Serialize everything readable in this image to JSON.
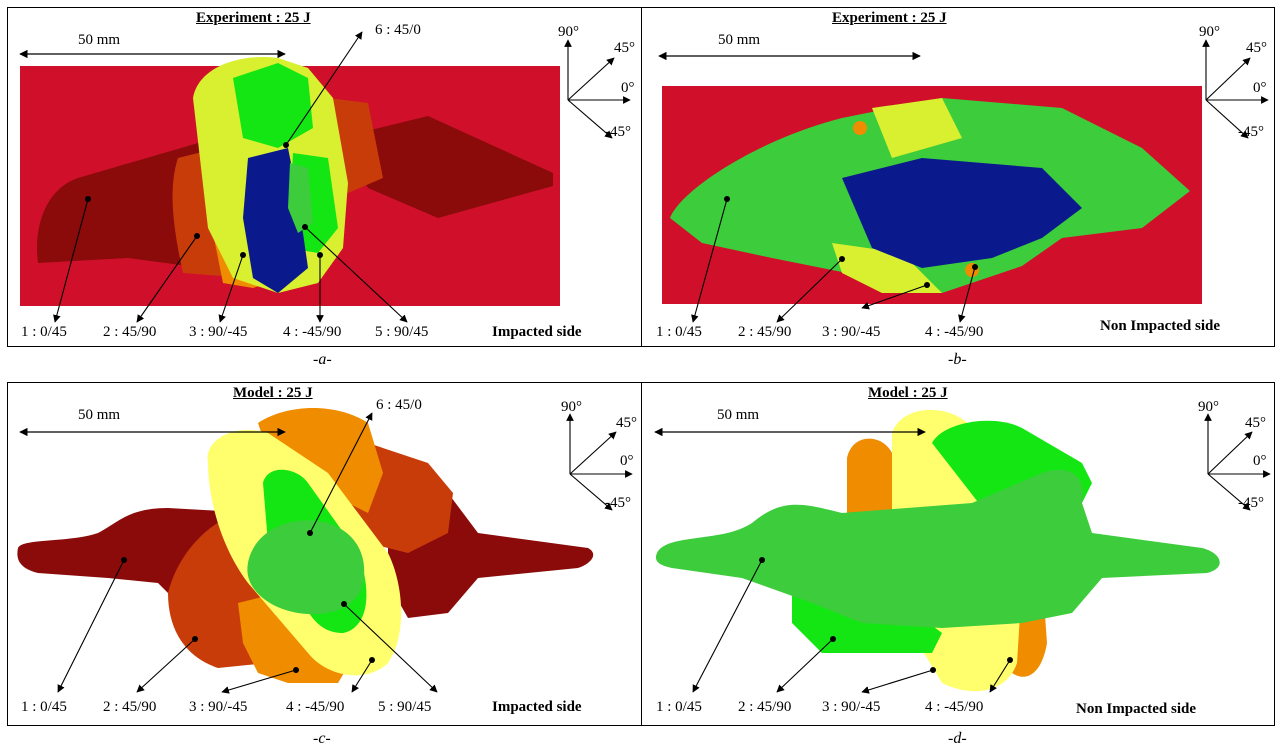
{
  "panels": {
    "a": {
      "title": "Experiment : 25 J",
      "scale": "50 mm",
      "angles": [
        "90°",
        "45°",
        "0°",
        "-45°"
      ],
      "layers": [
        "1 : 0/45",
        "2 : 45/90",
        "3 : 90/-45",
        "4 : -45/90",
        "5 : 90/45"
      ],
      "top_layer": "6 : 45/0",
      "side": "Impacted side",
      "caption": "-a-"
    },
    "b": {
      "title": "Experiment : 25 J",
      "scale": "50 mm",
      "angles": [
        "90°",
        "45°",
        "0°",
        "-45°"
      ],
      "layers": [
        "1 : 0/45",
        "2 : 45/90",
        "3 : 90/-45",
        "4 : -45/90"
      ],
      "side": "Non Impacted side",
      "caption": "-b-"
    },
    "c": {
      "title": "Model : 25 J",
      "scale": "50 mm",
      "angles": [
        "90°",
        "45°",
        "0°",
        "-45°"
      ],
      "layers": [
        "1 : 0/45",
        "2 : 45/90",
        "3 : 90/-45",
        "4 : -45/90",
        "5 : 90/45"
      ],
      "top_layer": "6 : 45/0",
      "side": "Impacted side",
      "caption": "-c-"
    },
    "d": {
      "title": "Model : 25 J",
      "scale": "50 mm",
      "angles": [
        "90°",
        "45°",
        "0°",
        "-45°"
      ],
      "layers": [
        "1 : 0/45",
        "2 : 45/90",
        "3 : 90/-45",
        "4 : -45/90"
      ],
      "side": "Non Impacted side",
      "caption": "-d-"
    }
  },
  "colors": {
    "background_red": "#d0102a",
    "dark_red": "#8b0a0a",
    "red_orange": "#c83c0a",
    "orange": "#f08c00",
    "light_yellow": "#ffff6e",
    "yellow_green": "#d8f030",
    "bright_green": "#14e614",
    "medium_green": "#3ccc3c",
    "dark_blue": "#0a1a8c"
  }
}
